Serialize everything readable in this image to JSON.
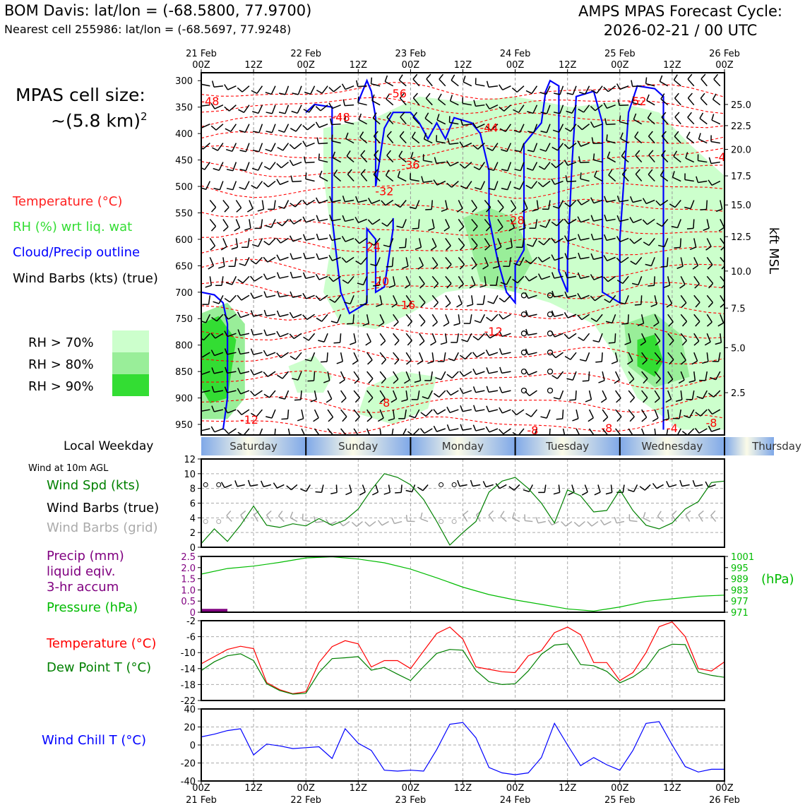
{
  "header": {
    "station": "BOM Davis: lat/lon = (-68.5800, 77.9700)",
    "nearest": "Nearest cell 255986: lat/lon = (-68.5697, 77.9248)",
    "cycle_line1": "AMPS MPAS Forecast Cycle:",
    "cycle_line2": "2026-02-21 / 00 UTC"
  },
  "legend": {
    "cell_size_label": "MPAS cell size:",
    "cell_size_value": "~(5.8 km)",
    "cell_size_exp": "2",
    "temperature": "Temperature (°C)",
    "rh": "RH (%) wrt liq. wat",
    "cloud": "Cloud/Precip outline",
    "barbs": "Wind Barbs (kts) (true)",
    "rh70": "RH > 70%",
    "rh80": "RH > 80%",
    "rh90": "RH > 90%",
    "local_weekday": "Local Weekday",
    "wind10m": "Wind at 10m AGL",
    "wind_spd": "Wind Spd (kts)",
    "wind_barbs_true": "Wind Barbs (true)",
    "wind_barbs_grid": "Wind Barbs (grid)",
    "precip1": "Precip (mm)",
    "precip2": "liquid eqiv.",
    "precip3": "3-hr accum",
    "pressure": "Pressure (hPa)",
    "hpa_unit": "(hPa)",
    "temp2": "Temperature (°C)",
    "dewpoint": "Dew Point T (°C)",
    "windchill": "Wind Chill T (°C)"
  },
  "colors": {
    "temperature": "#ff0000",
    "rh": "#33dd33",
    "cloud": "#0000ff",
    "barbs": "#000000",
    "wind_spd": "#008000",
    "grid_barbs": "#aaaaaa",
    "precip": "#800080",
    "pressure": "#00bb00",
    "dewpoint": "#008000",
    "windchill": "#0000ff",
    "rh70": "#ccffcc",
    "rh80": "#99ee99",
    "rh90": "#33dd33"
  },
  "chart_data": [
    {
      "type": "heatmap",
      "panel": "cross-section",
      "xlabel": "",
      "ylabel": "",
      "y_right_label": "kft MSL",
      "top_ticks": [
        {
          "x": 0,
          "top": "21 Feb",
          "bottom": "00Z"
        },
        {
          "x": 12,
          "top": "",
          "bottom": "12Z"
        },
        {
          "x": 24,
          "top": "22 Feb",
          "bottom": "00Z"
        },
        {
          "x": 36,
          "top": "",
          "bottom": "12Z"
        },
        {
          "x": 48,
          "top": "23 Feb",
          "bottom": "00Z"
        },
        {
          "x": 60,
          "top": "",
          "bottom": "12Z"
        },
        {
          "x": 72,
          "top": "24 Feb",
          "bottom": "00Z"
        },
        {
          "x": 84,
          "top": "",
          "bottom": "12Z"
        },
        {
          "x": 96,
          "top": "25 Feb",
          "bottom": "00Z"
        },
        {
          "x": 108,
          "top": "",
          "bottom": "12Z"
        },
        {
          "x": 120,
          "top": "26 Feb",
          "bottom": "00Z"
        }
      ],
      "xlim": [
        0,
        120
      ],
      "pressure_ticks": [
        "300",
        "350",
        "400",
        "450",
        "500",
        "550",
        "600",
        "650",
        "700",
        "750",
        "800",
        "850",
        "900",
        "950"
      ],
      "pressure_values": [
        300,
        350,
        400,
        450,
        500,
        550,
        600,
        650,
        700,
        750,
        800,
        850,
        900,
        950
      ],
      "ylim": [
        285,
        970
      ],
      "kft_ticks": [
        {
          "label": "25.0",
          "p": 345
        },
        {
          "label": "22.5",
          "p": 385
        },
        {
          "label": "20.0",
          "p": 430
        },
        {
          "label": "17.5",
          "p": 480
        },
        {
          "label": "15.0",
          "p": 535
        },
        {
          "label": "12.5",
          "p": 595
        },
        {
          "label": "10.0",
          "p": 660
        },
        {
          "label": "7.5",
          "p": 730
        },
        {
          "label": "5.0",
          "p": 805
        },
        {
          "label": "2.5",
          "p": 890
        }
      ],
      "temperature_labels": [
        {
          "text": "-56",
          "x": 45,
          "p": 325
        },
        {
          "text": "-48",
          "x": 2,
          "p": 340
        },
        {
          "text": "-48",
          "x": 32,
          "p": 370
        },
        {
          "text": "-52",
          "x": 100,
          "p": 340
        },
        {
          "text": "-44",
          "x": 66,
          "p": 390
        },
        {
          "text": "-4",
          "x": 119,
          "p": 445
        },
        {
          "text": "-36",
          "x": 48,
          "p": 460
        },
        {
          "text": "-32",
          "x": 42,
          "p": 510
        },
        {
          "text": "-28",
          "x": 72,
          "p": 565
        },
        {
          "text": "-24",
          "x": 39,
          "p": 615
        },
        {
          "text": "-20",
          "x": 41,
          "p": 680
        },
        {
          "text": "-16",
          "x": 47,
          "p": 725
        },
        {
          "text": "-12",
          "x": 67,
          "p": 775
        },
        {
          "text": "-8",
          "x": 42,
          "p": 910
        },
        {
          "text": "-12",
          "x": 11,
          "p": 942
        },
        {
          "text": "-8",
          "x": 76,
          "p": 962
        },
        {
          "text": "-8",
          "x": 93,
          "p": 958
        },
        {
          "text": "-4",
          "x": 108,
          "p": 958
        },
        {
          "text": "-8",
          "x": 117,
          "p": 948
        }
      ]
    },
    {
      "type": "line",
      "panel": "wind",
      "xlim": [
        0,
        120
      ],
      "ylim": [
        0,
        12
      ],
      "y_ticks": [
        "0",
        "2",
        "4",
        "6",
        "8",
        "10",
        "12"
      ],
      "x": [
        0,
        3,
        6,
        9,
        12,
        15,
        18,
        21,
        24,
        27,
        30,
        33,
        36,
        39,
        42,
        45,
        48,
        51,
        54,
        57,
        60,
        63,
        66,
        69,
        72,
        75,
        78,
        81,
        84,
        87,
        90,
        93,
        96,
        99,
        102,
        105,
        108,
        111,
        114,
        117,
        120
      ],
      "series": [
        {
          "name": "Wind Spd (kts)",
          "values": [
            0.5,
            2.5,
            0.8,
            3.0,
            5.6,
            3.0,
            2.7,
            3.2,
            2.9,
            3.9,
            3.0,
            3.7,
            5.2,
            7.8,
            10.0,
            9.5,
            8.5,
            6.5,
            3.5,
            0.3,
            2.0,
            3.5,
            7.5,
            9.0,
            9.5,
            8.0,
            6.0,
            3.3,
            7.8,
            7.0,
            4.8,
            5.0,
            7.8,
            5.0,
            3.0,
            2.5,
            3.3,
            5.2,
            6.2,
            8.8,
            9.0
          ]
        }
      ]
    },
    {
      "type": "line",
      "panel": "precip-pressure",
      "xlim": [
        0,
        120
      ],
      "ylim": [
        0,
        2.5
      ],
      "y_ticks": [
        "0",
        "0.5",
        "1.0",
        "1.5",
        "2.0",
        "2.5"
      ],
      "pressure_ticks": [
        "1001",
        "995",
        "989",
        "983",
        "977",
        "971"
      ],
      "pressure_lim": [
        971,
        1001
      ],
      "precip_bars": [
        {
          "x0": 0,
          "x1": 6,
          "value": 0.15
        }
      ],
      "x": [
        0,
        6,
        12,
        18,
        24,
        30,
        36,
        42,
        48,
        54,
        60,
        66,
        72,
        78,
        84,
        90,
        96,
        102,
        108,
        114,
        120
      ],
      "series": [
        {
          "name": "Pressure (hPa)",
          "values": [
            991.5,
            994.5,
            995.8,
            997.8,
            1000.2,
            1000.8,
            999.6,
            997.6,
            994.2,
            989.5,
            984.5,
            980.5,
            977.6,
            975.2,
            972.8,
            971.6,
            973.8,
            976.8,
            978.2,
            979.6,
            980.2
          ]
        }
      ]
    },
    {
      "type": "line",
      "panel": "temperature",
      "xlim": [
        0,
        120
      ],
      "ylim": [
        -22,
        -2
      ],
      "y_ticks": [
        "-2",
        "-6",
        "-10",
        "-14",
        "-18",
        "-22"
      ],
      "x": [
        0,
        3,
        6,
        9,
        12,
        15,
        18,
        21,
        24,
        27,
        30,
        33,
        36,
        39,
        42,
        45,
        48,
        51,
        54,
        57,
        60,
        63,
        66,
        69,
        72,
        75,
        78,
        81,
        84,
        87,
        90,
        93,
        96,
        99,
        102,
        105,
        108,
        111,
        114,
        117,
        120
      ],
      "series": [
        {
          "name": "Temperature (°C)",
          "values": [
            -12.8,
            -11.0,
            -9.2,
            -8.4,
            -9.0,
            -17.5,
            -19.3,
            -20.3,
            -19.8,
            -12.5,
            -8.5,
            -7.0,
            -7.8,
            -13.6,
            -12.0,
            -12.0,
            -14.0,
            -9.6,
            -5.2,
            -3.6,
            -6.6,
            -13.6,
            -14.2,
            -14.8,
            -15.0,
            -10.8,
            -9.5,
            -5.0,
            -3.6,
            -5.5,
            -12.5,
            -12.5,
            -17.0,
            -15.0,
            -10.0,
            -3.5,
            -2.3,
            -6.0,
            -14.0,
            -14.6,
            -12.3
          ],
          "color": "red"
        },
        {
          "name": "Dew Point T (°C)",
          "values": [
            -14.5,
            -12.3,
            -10.8,
            -10.3,
            -12.0,
            -17.8,
            -19.5,
            -20.4,
            -20.2,
            -15.0,
            -11.5,
            -11.3,
            -11.0,
            -14.4,
            -13.7,
            -15.4,
            -17.0,
            -13.5,
            -10.2,
            -9.2,
            -9.4,
            -14.5,
            -17.3,
            -18.0,
            -17.8,
            -14.6,
            -10.4,
            -8.1,
            -7.8,
            -13.0,
            -13.3,
            -14.7,
            -17.6,
            -16.1,
            -13.8,
            -9.3,
            -7.9,
            -8.0,
            -14.9,
            -15.7,
            -16.2
          ],
          "color": "green"
        }
      ]
    },
    {
      "type": "line",
      "panel": "windchill",
      "xlim": [
        0,
        120
      ],
      "ylim": [
        -40,
        40
      ],
      "y_ticks": [
        "40",
        "20",
        "0",
        "-20",
        "-40"
      ],
      "x_ticks_top": [
        "00Z",
        "12Z",
        "00Z",
        "12Z",
        "00Z",
        "12Z",
        "00Z",
        "12Z",
        "00Z",
        "12Z",
        "00Z"
      ],
      "x_ticks_bottom": [
        "21 Feb",
        "",
        "22 Feb",
        "",
        "23 Feb",
        "",
        "24 Feb",
        "",
        "25 Feb",
        "",
        "26 Feb"
      ],
      "x": [
        0,
        3,
        6,
        9,
        12,
        15,
        18,
        21,
        24,
        27,
        30,
        33,
        36,
        39,
        42,
        45,
        48,
        51,
        54,
        57,
        60,
        63,
        66,
        69,
        72,
        75,
        78,
        81,
        84,
        87,
        90,
        93,
        96,
        99,
        102,
        105,
        108,
        111,
        114,
        117,
        120
      ],
      "series": [
        {
          "name": "Wind Chill T (°C)",
          "values": [
            9,
            12,
            16,
            18,
            -11,
            1,
            -1,
            -4,
            -3,
            -2,
            -15,
            18,
            2,
            -6,
            -28,
            -29,
            -28,
            -29,
            -5,
            23,
            25,
            8,
            -25,
            -31,
            -33,
            -31,
            -14,
            24,
            0,
            -23,
            -14,
            -22,
            -28,
            -6,
            24,
            26,
            0,
            -24,
            -30,
            -27,
            -27
          ]
        }
      ]
    }
  ],
  "weekday_strip": {
    "days": [
      "Saturday",
      "Sunday",
      "Monday",
      "Tuesday",
      "Wednesday",
      "Thursday"
    ]
  }
}
